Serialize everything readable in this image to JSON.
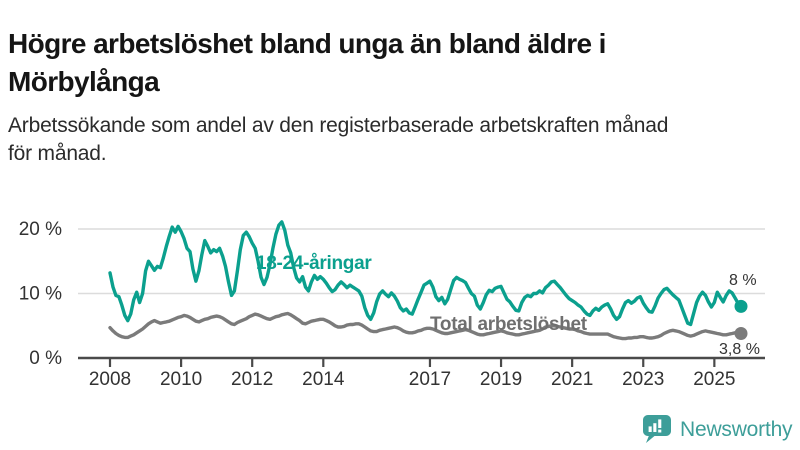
{
  "header": {
    "title_lines": [
      "Högre arbetslöshet bland unga än bland äldre i",
      "Mörbylånga"
    ],
    "subtitle_lines": [
      "Arbetssökande som andel av den registerbaserade arbetskraften månad",
      "för månad."
    ]
  },
  "chart_data": {
    "type": "line",
    "x_start_year": 2008,
    "points_per_year": 12,
    "x_ticks": [
      2008,
      2010,
      2012,
      2014,
      2017,
      2019,
      2021,
      2023,
      2025
    ],
    "y_ticks": [
      0,
      10,
      20
    ],
    "y_tick_labels": [
      "0 %",
      "10 %",
      "20 %"
    ],
    "ylim": [
      0,
      22
    ],
    "grid": "horizontal",
    "legend_position": "inline-labels",
    "xlabel": "",
    "ylabel": "",
    "colors": {
      "grid": "#dcdcdc",
      "axis": "#4a4a4a",
      "tick_text": "#333333"
    },
    "series": [
      {
        "name": "18-24-åringar",
        "color": "#0ba08e",
        "end_label": "8 %",
        "values": [
          13.2,
          11.0,
          9.7,
          9.5,
          8.2,
          6.6,
          5.8,
          6.8,
          9.0,
          10.2,
          8.6,
          10.0,
          13.5,
          15.0,
          14.3,
          13.6,
          14.2,
          14.0,
          15.5,
          17.3,
          18.9,
          20.3,
          19.5,
          20.4,
          19.6,
          18.5,
          17.0,
          16.5,
          13.8,
          11.9,
          13.5,
          16.0,
          18.2,
          17.3,
          16.3,
          16.8,
          16.5,
          17.0,
          15.8,
          14.2,
          11.8,
          9.7,
          10.4,
          13.5,
          16.8,
          19.0,
          19.5,
          18.8,
          17.8,
          17.0,
          15.0,
          12.5,
          11.4,
          12.5,
          14.5,
          17.0,
          19.2,
          20.6,
          21.1,
          19.8,
          17.5,
          16.3,
          14.0,
          12.4,
          11.8,
          12.6,
          11.0,
          10.4,
          11.8,
          12.8,
          12.2,
          12.6,
          12.2,
          11.6,
          10.9,
          10.3,
          10.6,
          11.3,
          11.8,
          11.4,
          10.9,
          11.3,
          11.0,
          10.7,
          10.4,
          9.6,
          7.8,
          6.6,
          6.0,
          7.0,
          8.7,
          9.9,
          10.4,
          9.9,
          9.5,
          10.1,
          9.6,
          8.8,
          7.8,
          7.3,
          7.6,
          7.0,
          6.8,
          7.9,
          9.1,
          10.2,
          11.3,
          11.6,
          11.9,
          11.0,
          9.5,
          8.9,
          9.4,
          8.4,
          9.1,
          10.6,
          12.0,
          12.5,
          12.2,
          12.0,
          11.7,
          10.8,
          10.0,
          9.6,
          8.2,
          7.6,
          8.6,
          9.8,
          10.5,
          10.3,
          10.8,
          11.0,
          11.1,
          10.1,
          9.1,
          8.7,
          8.0,
          7.4,
          7.3,
          8.6,
          9.4,
          9.7,
          9.5,
          10.0,
          10.0,
          10.4,
          10.1,
          10.9,
          11.3,
          11.8,
          11.9,
          11.4,
          10.9,
          10.3,
          9.7,
          9.2,
          8.9,
          8.6,
          8.2,
          7.9,
          7.3,
          6.8,
          6.6,
          7.3,
          7.7,
          7.4,
          7.9,
          8.2,
          8.4,
          7.6,
          6.6,
          6.0,
          6.4,
          7.6,
          8.6,
          8.9,
          8.5,
          8.8,
          9.3,
          9.5,
          8.5,
          7.8,
          7.2,
          7.1,
          8.1,
          9.3,
          10.0,
          10.6,
          10.8,
          10.3,
          9.8,
          9.4,
          9.0,
          7.8,
          6.6,
          5.4,
          5.2,
          6.9,
          8.6,
          9.6,
          10.2,
          9.7,
          8.7,
          7.9,
          8.6,
          10.2,
          9.4,
          8.7,
          9.7,
          10.4,
          10.1,
          9.3,
          8.5,
          8.0
        ]
      },
      {
        "name": "Total arbetslöshet",
        "color": "#7b7b7b",
        "end_label": "3,8 %",
        "values": [
          4.7,
          4.2,
          3.8,
          3.5,
          3.3,
          3.2,
          3.2,
          3.4,
          3.6,
          3.9,
          4.2,
          4.5,
          4.9,
          5.3,
          5.6,
          5.8,
          5.6,
          5.4,
          5.5,
          5.6,
          5.7,
          5.9,
          6.1,
          6.3,
          6.4,
          6.6,
          6.5,
          6.3,
          6.0,
          5.7,
          5.6,
          5.8,
          6.0,
          6.1,
          6.3,
          6.4,
          6.5,
          6.4,
          6.2,
          5.9,
          5.6,
          5.3,
          5.2,
          5.5,
          5.7,
          5.9,
          6.1,
          6.4,
          6.6,
          6.8,
          6.7,
          6.5,
          6.3,
          6.1,
          6.0,
          6.2,
          6.4,
          6.5,
          6.7,
          6.8,
          6.9,
          6.7,
          6.4,
          6.1,
          5.8,
          5.4,
          5.3,
          5.5,
          5.7,
          5.8,
          5.9,
          6.0,
          6.0,
          5.8,
          5.6,
          5.3,
          5.0,
          4.8,
          4.8,
          4.9,
          5.1,
          5.2,
          5.2,
          5.3,
          5.3,
          5.1,
          4.8,
          4.5,
          4.2,
          4.1,
          4.1,
          4.3,
          4.4,
          4.5,
          4.6,
          4.7,
          4.8,
          4.7,
          4.5,
          4.2,
          4.0,
          3.9,
          3.9,
          4.0,
          4.2,
          4.3,
          4.5,
          4.6,
          4.6,
          4.5,
          4.3,
          4.1,
          3.9,
          3.8,
          3.8,
          3.9,
          4.0,
          4.1,
          4.2,
          4.3,
          4.4,
          4.3,
          4.1,
          3.9,
          3.7,
          3.6,
          3.6,
          3.7,
          3.8,
          3.9,
          4.0,
          4.1,
          4.2,
          4.1,
          3.9,
          3.8,
          3.7,
          3.6,
          3.6,
          3.7,
          3.8,
          3.9,
          4.0,
          4.1,
          4.2,
          4.3,
          4.5,
          4.8,
          4.9,
          5.0,
          5.0,
          4.9,
          4.8,
          4.7,
          4.6,
          4.5,
          4.5,
          4.4,
          4.2,
          4.1,
          3.9,
          3.8,
          3.7,
          3.7,
          3.7,
          3.7,
          3.7,
          3.7,
          3.7,
          3.5,
          3.3,
          3.2,
          3.1,
          3.0,
          3.0,
          3.1,
          3.1,
          3.2,
          3.2,
          3.3,
          3.3,
          3.2,
          3.1,
          3.1,
          3.2,
          3.3,
          3.5,
          3.8,
          4.0,
          4.2,
          4.3,
          4.2,
          4.1,
          3.9,
          3.7,
          3.5,
          3.4,
          3.5,
          3.7,
          3.9,
          4.1,
          4.2,
          4.1,
          4.0,
          3.9,
          3.8,
          3.7,
          3.6,
          3.6,
          3.7,
          3.8,
          3.9,
          3.8,
          3.8
        ]
      }
    ]
  },
  "footer": {
    "brand": "Newsworthy",
    "brand_color": "#3d9e99"
  }
}
